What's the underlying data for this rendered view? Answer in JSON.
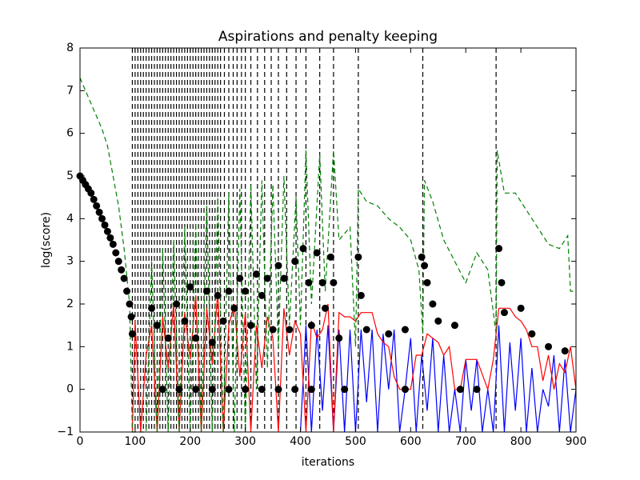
{
  "chart_data": {
    "type": "line",
    "title": "Aspirations and penalty keeping",
    "x_label": "iterations",
    "y_label": "log(score)",
    "xlim": [
      0,
      900
    ],
    "ylim": [
      -1,
      8
    ],
    "xticks": [
      0,
      100,
      200,
      300,
      400,
      500,
      600,
      700,
      800,
      900
    ],
    "yticks": [
      {
        "value": -1,
        "label": "−1"
      },
      0,
      1,
      2,
      3,
      4,
      5,
      6,
      7,
      8
    ],
    "vlines": {
      "color": "#000000",
      "linestyle": "dashed",
      "x": [
        95,
        100,
        105,
        110,
        115,
        120,
        125,
        130,
        135,
        140,
        145,
        150,
        155,
        160,
        165,
        170,
        175,
        180,
        185,
        190,
        195,
        200,
        205,
        210,
        215,
        220,
        225,
        230,
        235,
        240,
        245,
        250,
        255,
        262,
        270,
        278,
        285,
        293,
        300,
        310,
        322,
        335,
        347,
        360,
        375,
        392,
        410,
        435,
        460,
        505,
        622,
        755
      ]
    },
    "series": [
      {
        "color": "#0000ff",
        "linestyle": "solid",
        "marker": "none",
        "x": [
          400,
          410,
          420,
          430,
          440,
          450,
          460,
          470,
          480,
          490,
          500,
          510,
          520,
          530,
          540,
          550,
          560,
          570,
          580,
          590,
          600,
          610,
          620,
          630,
          640,
          650,
          660,
          670,
          680,
          690,
          700,
          710,
          720,
          730,
          740,
          750,
          760,
          770,
          780,
          790,
          800,
          810,
          820,
          830,
          840,
          850,
          860,
          870,
          880,
          890,
          900
        ],
        "values": [
          -1,
          1.5,
          -1,
          1.4,
          -0.5,
          1.5,
          -1,
          1.4,
          -1,
          1.4,
          -1,
          1.4,
          -0.3,
          1.4,
          -1,
          1.3,
          0,
          1.4,
          -1,
          0,
          1.2,
          -1,
          0.8,
          -0.5,
          1.2,
          -1,
          0.8,
          -1,
          0,
          -1,
          0.7,
          -0.5,
          0.7,
          -1,
          0,
          -1,
          1.5,
          -1,
          1.1,
          -0.5,
          1.2,
          -1,
          0.5,
          -1,
          0,
          -0.4,
          0.8,
          -1,
          0.7,
          -1,
          0
        ]
      },
      {
        "color": "#ff0000",
        "linestyle": "solid",
        "marker": "none",
        "x": [
          95,
          100,
          110,
          120,
          130,
          140,
          150,
          160,
          170,
          180,
          190,
          200,
          210,
          220,
          230,
          240,
          250,
          260,
          270,
          280,
          290,
          300,
          310,
          320,
          330,
          340,
          350,
          360,
          370,
          380,
          390,
          400,
          410,
          420,
          430,
          440,
          450,
          460,
          470,
          480,
          490,
          500,
          510,
          520,
          530,
          540,
          550,
          560,
          570,
          580,
          600,
          610,
          620,
          630,
          640,
          650,
          660,
          670,
          680,
          690,
          700,
          720,
          740,
          750,
          760,
          780,
          790,
          800,
          810,
          820,
          830,
          840,
          850,
          860,
          870,
          880,
          890,
          900
        ],
        "values": [
          -1,
          1.6,
          -1,
          0.8,
          1.5,
          -1,
          1.7,
          0.5,
          2,
          -1,
          1.8,
          0.7,
          2.2,
          -1,
          1.9,
          0.6,
          2.3,
          -1,
          1.5,
          2,
          0.3,
          1.8,
          -1,
          1.5,
          0.5,
          1.7,
          1.2,
          -1,
          1.9,
          0.8,
          1.6,
          1.3,
          -1,
          1.6,
          1.2,
          1.4,
          2,
          -1,
          1.8,
          1.7,
          1.7,
          1.6,
          1.8,
          1.8,
          1.8,
          1.3,
          1.1,
          1,
          0.3,
          0,
          0,
          0.8,
          0.8,
          1.3,
          1.2,
          1.1,
          0.8,
          1,
          0,
          0,
          0.7,
          0.7,
          0,
          0.7,
          1.9,
          1.9,
          1.7,
          1.6,
          1.4,
          1,
          1,
          0.2,
          0.8,
          0,
          0.6,
          0.4,
          1,
          0
        ]
      },
      {
        "color": "#008000",
        "linestyle": "dashed",
        "marker": "none",
        "x": [
          0,
          10,
          20,
          30,
          40,
          50,
          60,
          70,
          80,
          90,
          95,
          120,
          130,
          140,
          150,
          160,
          170,
          180,
          190,
          200,
          210,
          220,
          230,
          240,
          250,
          260,
          270,
          280,
          290,
          300,
          310,
          320,
          330,
          340,
          350,
          360,
          370,
          380,
          392,
          400,
          410,
          420,
          435,
          445,
          460,
          470,
          490,
          500,
          505,
          520,
          540,
          560,
          580,
          600,
          615,
          622,
          625,
          640,
          660,
          680,
          700,
          720,
          740,
          755,
          757,
          770,
          790,
          810,
          830,
          850,
          870,
          885,
          890,
          900
        ],
        "values": [
          7.3,
          7,
          6.7,
          6.4,
          6.1,
          5.7,
          5,
          4.3,
          3.3,
          2,
          -1,
          -1,
          3,
          -1,
          3.3,
          -1,
          3.5,
          -1,
          3.8,
          -1,
          3.9,
          -1,
          4.3,
          -1,
          4.5,
          -1,
          4.6,
          -1,
          4.7,
          -1,
          4.8,
          0,
          4.9,
          0.5,
          4.8,
          1,
          5,
          1.5,
          4.5,
          1.5,
          5.6,
          2,
          5.5,
          2.3,
          5.6,
          3.5,
          3.8,
          1,
          4.7,
          4.4,
          4.3,
          4,
          3.8,
          3.5,
          2.8,
          1.3,
          4.9,
          4.4,
          3.5,
          3,
          2.5,
          3.2,
          2.8,
          1.3,
          5.6,
          4.6,
          4.6,
          4.2,
          3.8,
          3.4,
          3.3,
          3.6,
          2.3,
          2.3
        ]
      },
      {
        "color": "#000000",
        "linestyle": "none",
        "marker": "o",
        "x": [
          0,
          5,
          10,
          15,
          20,
          25,
          30,
          35,
          40,
          45,
          50,
          55,
          60,
          65,
          70,
          75,
          80,
          85,
          90,
          93,
          95,
          130,
          140,
          160,
          175,
          190,
          200,
          210,
          230,
          240,
          250,
          260,
          270,
          280,
          290,
          300,
          310,
          320,
          330,
          340,
          350,
          360,
          370,
          380,
          390,
          405,
          415,
          420,
          430,
          440,
          445,
          455,
          460,
          470,
          505,
          510,
          520,
          560,
          590,
          620,
          625,
          630,
          640,
          650,
          680,
          760,
          765,
          770,
          800,
          820,
          850,
          880,
          150,
          180,
          210,
          240,
          270,
          300,
          330,
          360,
          390,
          420,
          480,
          590,
          690,
          720
        ],
        "values": [
          5,
          4.9,
          4.8,
          4.7,
          4.6,
          4.45,
          4.3,
          4.15,
          4,
          3.85,
          3.7,
          3.55,
          3.4,
          3.2,
          3,
          2.8,
          2.6,
          2.3,
          2,
          1.7,
          1.3,
          1.9,
          1.5,
          1.2,
          2,
          1.6,
          2.4,
          1.2,
          2.3,
          1.1,
          2.2,
          1.6,
          2.3,
          1.9,
          2.6,
          2.3,
          1.5,
          2.7,
          2.2,
          2.6,
          1.4,
          2.9,
          2.6,
          1.4,
          3,
          3.3,
          2.5,
          1.5,
          3.2,
          2.5,
          1.9,
          3.1,
          2.5,
          1.2,
          3.1,
          2.2,
          1.4,
          1.3,
          1.4,
          3.1,
          2.9,
          2.5,
          2,
          1.6,
          1.5,
          3.3,
          2.5,
          1.8,
          1.9,
          1.3,
          1,
          0.9,
          0,
          0,
          0,
          0,
          0,
          0,
          0,
          0,
          0,
          0,
          0,
          0,
          0,
          0
        ]
      }
    ]
  }
}
